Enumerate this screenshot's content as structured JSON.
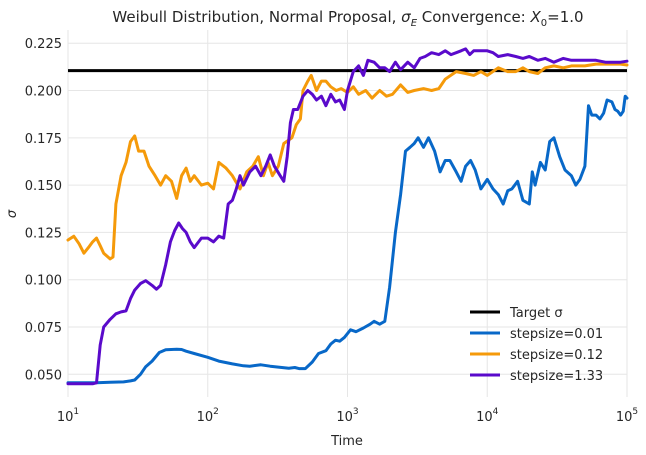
{
  "chart_data": {
    "type": "line",
    "title": "Weibull Distribution, Normal Proposal, σ_E Convergence: X_0=1.0",
    "title_parts": {
      "prefix": "Weibull Distribution, Normal Proposal, ",
      "sigma": "σ",
      "sigma_sub": "E",
      "middle": " Convergence: ",
      "x": "X",
      "x_sub": "0",
      "suffix": "=1.0"
    },
    "xlabel": "Time",
    "ylabel": "σ",
    "xscale": "log",
    "xlim": [
      10,
      100000
    ],
    "ylim": [
      0.038,
      0.232
    ],
    "x_ticks": [
      {
        "value": 10,
        "base": "10",
        "exp": "1"
      },
      {
        "value": 100,
        "base": "10",
        "exp": "2"
      },
      {
        "value": 1000,
        "base": "10",
        "exp": "3"
      },
      {
        "value": 10000,
        "base": "10",
        "exp": "4"
      },
      {
        "value": 100000,
        "base": "10",
        "exp": "5"
      }
    ],
    "y_ticks": [
      {
        "value": 0.05,
        "label": "0.050"
      },
      {
        "value": 0.075,
        "label": "0.075"
      },
      {
        "value": 0.1,
        "label": "0.100"
      },
      {
        "value": 0.125,
        "label": "0.125"
      },
      {
        "value": 0.15,
        "label": "0.150"
      },
      {
        "value": 0.175,
        "label": "0.175"
      },
      {
        "value": 0.2,
        "label": "0.200"
      },
      {
        "value": 0.225,
        "label": "0.225"
      }
    ],
    "grid": true,
    "legend_position": "bottom-right",
    "target": {
      "name": "Target σ",
      "value": 0.2105,
      "color": "#000000"
    },
    "series": [
      {
        "name": "stepsize=0.01",
        "color": "#0868c8",
        "points": [
          [
            10,
            0.0455
          ],
          [
            16,
            0.0455
          ],
          [
            20,
            0.0458
          ],
          [
            25,
            0.046
          ],
          [
            28,
            0.0465
          ],
          [
            30,
            0.047
          ],
          [
            33,
            0.05
          ],
          [
            36,
            0.054
          ],
          [
            40,
            0.057
          ],
          [
            45,
            0.0615
          ],
          [
            50,
            0.063
          ],
          [
            60,
            0.0632
          ],
          [
            65,
            0.0631
          ],
          [
            70,
            0.0622
          ],
          [
            80,
            0.061
          ],
          [
            100,
            0.059
          ],
          [
            120,
            0.057
          ],
          [
            150,
            0.0555
          ],
          [
            180,
            0.0545
          ],
          [
            200,
            0.0543
          ],
          [
            240,
            0.055
          ],
          [
            280,
            0.0543
          ],
          [
            320,
            0.0538
          ],
          [
            380,
            0.0532
          ],
          [
            420,
            0.0536
          ],
          [
            450,
            0.053
          ],
          [
            500,
            0.053
          ],
          [
            560,
            0.0565
          ],
          [
            620,
            0.061
          ],
          [
            700,
            0.0625
          ],
          [
            760,
            0.066
          ],
          [
            820,
            0.068
          ],
          [
            880,
            0.0675
          ],
          [
            950,
            0.0695
          ],
          [
            1050,
            0.0735
          ],
          [
            1150,
            0.0725
          ],
          [
            1300,
            0.0745
          ],
          [
            1450,
            0.0765
          ],
          [
            1550,
            0.078
          ],
          [
            1700,
            0.0765
          ],
          [
            1850,
            0.078
          ],
          [
            2000,
            0.096
          ],
          [
            2200,
            0.125
          ],
          [
            2400,
            0.145
          ],
          [
            2600,
            0.168
          ],
          [
            2800,
            0.17
          ],
          [
            3000,
            0.172
          ],
          [
            3200,
            0.175
          ],
          [
            3500,
            0.17
          ],
          [
            3800,
            0.175
          ],
          [
            4200,
            0.168
          ],
          [
            4600,
            0.157
          ],
          [
            5000,
            0.163
          ],
          [
            5400,
            0.163
          ],
          [
            6000,
            0.157
          ],
          [
            6500,
            0.152
          ],
          [
            7000,
            0.16
          ],
          [
            7600,
            0.163
          ],
          [
            8200,
            0.158
          ],
          [
            9000,
            0.148
          ],
          [
            10000,
            0.153
          ],
          [
            11000,
            0.148
          ],
          [
            12000,
            0.145
          ],
          [
            13000,
            0.14
          ],
          [
            14000,
            0.147
          ],
          [
            15000,
            0.148
          ],
          [
            16500,
            0.152
          ],
          [
            18000,
            0.142
          ],
          [
            20000,
            0.14
          ],
          [
            21000,
            0.157
          ],
          [
            22000,
            0.15
          ],
          [
            24000,
            0.162
          ],
          [
            26000,
            0.158
          ],
          [
            28000,
            0.173
          ],
          [
            30000,
            0.175
          ],
          [
            33000,
            0.165
          ],
          [
            36000,
            0.158
          ],
          [
            40000,
            0.155
          ],
          [
            43000,
            0.15
          ],
          [
            46000,
            0.153
          ],
          [
            50000,
            0.16
          ],
          [
            53000,
            0.192
          ],
          [
            56000,
            0.187
          ],
          [
            60000,
            0.187
          ],
          [
            64000,
            0.185
          ],
          [
            68000,
            0.188
          ],
          [
            72000,
            0.195
          ],
          [
            78000,
            0.194
          ],
          [
            82000,
            0.19
          ],
          [
            86000,
            0.189
          ],
          [
            90000,
            0.187
          ],
          [
            94000,
            0.189
          ],
          [
            97000,
            0.197
          ],
          [
            100000,
            0.196
          ]
        ]
      },
      {
        "name": "stepsize=0.12",
        "color": "#f59a0a",
        "points": [
          [
            10,
            0.121
          ],
          [
            11,
            0.123
          ],
          [
            12,
            0.119
          ],
          [
            13,
            0.114
          ],
          [
            14,
            0.117
          ],
          [
            15,
            0.12
          ],
          [
            16,
            0.122
          ],
          [
            17,
            0.118
          ],
          [
            18,
            0.114
          ],
          [
            20,
            0.111
          ],
          [
            21,
            0.112
          ],
          [
            22,
            0.14
          ],
          [
            24,
            0.155
          ],
          [
            26,
            0.162
          ],
          [
            28,
            0.173
          ],
          [
            30,
            0.176
          ],
          [
            32,
            0.168
          ],
          [
            35,
            0.168
          ],
          [
            38,
            0.16
          ],
          [
            42,
            0.155
          ],
          [
            46,
            0.15
          ],
          [
            50,
            0.155
          ],
          [
            55,
            0.152
          ],
          [
            60,
            0.143
          ],
          [
            65,
            0.155
          ],
          [
            70,
            0.159
          ],
          [
            75,
            0.152
          ],
          [
            80,
            0.155
          ],
          [
            90,
            0.15
          ],
          [
            100,
            0.151
          ],
          [
            110,
            0.148
          ],
          [
            120,
            0.162
          ],
          [
            135,
            0.159
          ],
          [
            150,
            0.155
          ],
          [
            170,
            0.148
          ],
          [
            190,
            0.157
          ],
          [
            210,
            0.16
          ],
          [
            230,
            0.165
          ],
          [
            250,
            0.155
          ],
          [
            270,
            0.162
          ],
          [
            290,
            0.155
          ],
          [
            320,
            0.16
          ],
          [
            350,
            0.172
          ],
          [
            400,
            0.175
          ],
          [
            430,
            0.182
          ],
          [
            460,
            0.185
          ],
          [
            480,
            0.2
          ],
          [
            520,
            0.205
          ],
          [
            550,
            0.208
          ],
          [
            600,
            0.2
          ],
          [
            650,
            0.205
          ],
          [
            700,
            0.205
          ],
          [
            760,
            0.202
          ],
          [
            830,
            0.2
          ],
          [
            900,
            0.201
          ],
          [
            1000,
            0.199
          ],
          [
            1100,
            0.202
          ],
          [
            1200,
            0.198
          ],
          [
            1350,
            0.2
          ],
          [
            1500,
            0.196
          ],
          [
            1700,
            0.2
          ],
          [
            1900,
            0.197
          ],
          [
            2100,
            0.198
          ],
          [
            2400,
            0.203
          ],
          [
            2700,
            0.199
          ],
          [
            3000,
            0.2
          ],
          [
            3500,
            0.201
          ],
          [
            4000,
            0.2
          ],
          [
            4500,
            0.201
          ],
          [
            5000,
            0.206
          ],
          [
            6000,
            0.21
          ],
          [
            7000,
            0.209
          ],
          [
            8000,
            0.208
          ],
          [
            9000,
            0.21
          ],
          [
            10000,
            0.208
          ],
          [
            12000,
            0.212
          ],
          [
            14000,
            0.21
          ],
          [
            16000,
            0.21
          ],
          [
            18000,
            0.212
          ],
          [
            20000,
            0.21
          ],
          [
            23000,
            0.209
          ],
          [
            26000,
            0.212
          ],
          [
            30000,
            0.213
          ],
          [
            35000,
            0.212
          ],
          [
            40000,
            0.213
          ],
          [
            50000,
            0.213
          ],
          [
            60000,
            0.214
          ],
          [
            70000,
            0.214
          ],
          [
            80000,
            0.214
          ],
          [
            90000,
            0.214
          ],
          [
            100000,
            0.2135
          ]
        ]
      },
      {
        "name": "stepsize=1.33",
        "color": "#5a0acb",
        "points": [
          [
            10,
            0.045
          ],
          [
            15,
            0.045
          ],
          [
            16,
            0.0455
          ],
          [
            17,
            0.0655
          ],
          [
            18,
            0.075
          ],
          [
            20,
            0.079
          ],
          [
            22,
            0.082
          ],
          [
            24,
            0.083
          ],
          [
            26,
            0.0835
          ],
          [
            28,
            0.09
          ],
          [
            30,
            0.0945
          ],
          [
            33,
            0.098
          ],
          [
            36,
            0.0995
          ],
          [
            40,
            0.097
          ],
          [
            43,
            0.095
          ],
          [
            46,
            0.097
          ],
          [
            50,
            0.108
          ],
          [
            54,
            0.12
          ],
          [
            58,
            0.126
          ],
          [
            62,
            0.13
          ],
          [
            66,
            0.127
          ],
          [
            70,
            0.125
          ],
          [
            75,
            0.12
          ],
          [
            80,
            0.117
          ],
          [
            90,
            0.122
          ],
          [
            100,
            0.122
          ],
          [
            110,
            0.12
          ],
          [
            120,
            0.123
          ],
          [
            130,
            0.122
          ],
          [
            140,
            0.14
          ],
          [
            150,
            0.142
          ],
          [
            160,
            0.148
          ],
          [
            170,
            0.155
          ],
          [
            180,
            0.15
          ],
          [
            200,
            0.157
          ],
          [
            220,
            0.16
          ],
          [
            240,
            0.155
          ],
          [
            260,
            0.16
          ],
          [
            280,
            0.166
          ],
          [
            300,
            0.16
          ],
          [
            330,
            0.155
          ],
          [
            350,
            0.152
          ],
          [
            370,
            0.165
          ],
          [
            390,
            0.183
          ],
          [
            410,
            0.19
          ],
          [
            440,
            0.19
          ],
          [
            480,
            0.197
          ],
          [
            520,
            0.2
          ],
          [
            560,
            0.198
          ],
          [
            600,
            0.195
          ],
          [
            650,
            0.197
          ],
          [
            700,
            0.192
          ],
          [
            760,
            0.198
          ],
          [
            820,
            0.194
          ],
          [
            880,
            0.195
          ],
          [
            950,
            0.19
          ],
          [
            1000,
            0.2
          ],
          [
            1100,
            0.21
          ],
          [
            1200,
            0.213
          ],
          [
            1300,
            0.208
          ],
          [
            1400,
            0.216
          ],
          [
            1550,
            0.215
          ],
          [
            1700,
            0.212
          ],
          [
            1850,
            0.212
          ],
          [
            2000,
            0.21
          ],
          [
            2200,
            0.215
          ],
          [
            2400,
            0.211
          ],
          [
            2700,
            0.215
          ],
          [
            3000,
            0.212
          ],
          [
            3300,
            0.217
          ],
          [
            3600,
            0.218
          ],
          [
            4000,
            0.22
          ],
          [
            4500,
            0.219
          ],
          [
            5000,
            0.221
          ],
          [
            5500,
            0.219
          ],
          [
            6000,
            0.22
          ],
          [
            6500,
            0.221
          ],
          [
            7000,
            0.222
          ],
          [
            7500,
            0.219
          ],
          [
            8000,
            0.221
          ],
          [
            9000,
            0.221
          ],
          [
            10000,
            0.221
          ],
          [
            11000,
            0.22
          ],
          [
            12000,
            0.218
          ],
          [
            14000,
            0.219
          ],
          [
            16000,
            0.218
          ],
          [
            18000,
            0.217
          ],
          [
            20000,
            0.218
          ],
          [
            23000,
            0.216
          ],
          [
            26000,
            0.217
          ],
          [
            30000,
            0.215
          ],
          [
            35000,
            0.217
          ],
          [
            40000,
            0.216
          ],
          [
            50000,
            0.216
          ],
          [
            60000,
            0.216
          ],
          [
            70000,
            0.215
          ],
          [
            80000,
            0.215
          ],
          [
            90000,
            0.215
          ],
          [
            100000,
            0.2155
          ]
        ]
      }
    ]
  }
}
